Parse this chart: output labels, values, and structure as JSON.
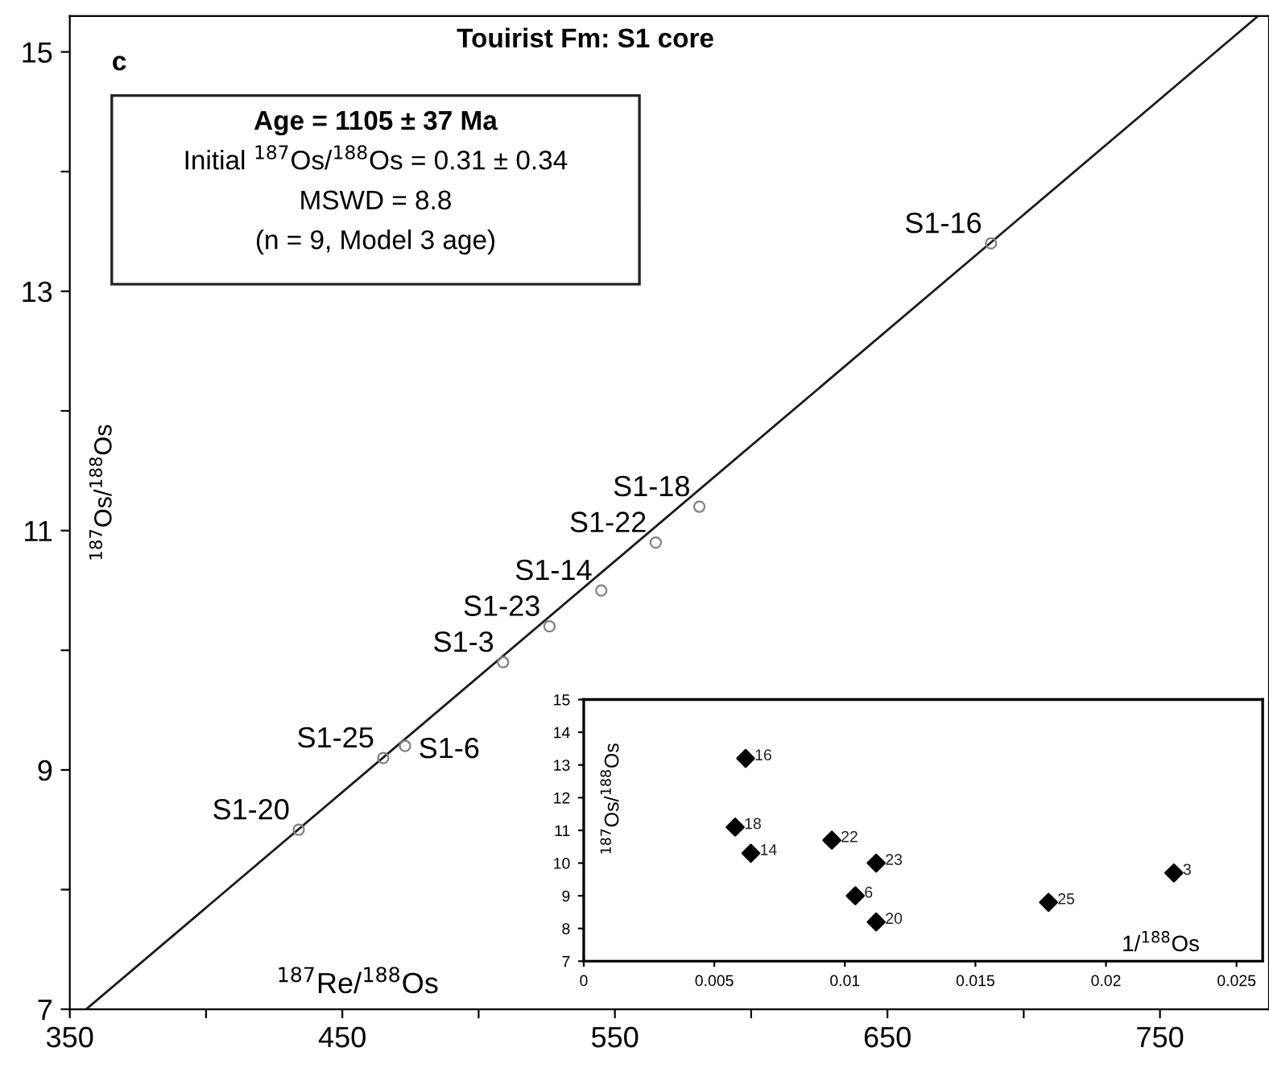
{
  "chart_data": [
    {
      "type": "scatter",
      "title": "Touirist Fm: S1 core",
      "xlabel": "$^{187}$Re/$^{188}$Os",
      "ylabel": "$^{187}$Os/$^{188}$Os",
      "annotations": [
        "c",
        "Age = 1105 ± 37 Ma",
        "Initial $^{187}$Os/$^{188}$Os = 0.31 ± 0.34",
        "MSWD = 8.8",
        "(n = 9, Model 3 age)",
        {
          "text": "S1-20",
          "x": 434,
          "y": 8.5
        },
        {
          "text": "S1-25",
          "x": 465,
          "y": 9.1
        },
        {
          "text": "S1-6",
          "x": 473,
          "y": 9.2
        },
        {
          "text": "S1-3",
          "x": 509,
          "y": 9.9
        },
        {
          "text": "S1-23",
          "x": 526,
          "y": 10.2
        },
        {
          "text": "S1-14",
          "x": 545,
          "y": 10.5
        },
        {
          "text": "S1-22",
          "x": 565,
          "y": 10.9
        },
        {
          "text": "S1-18",
          "x": 581,
          "y": 11.2
        },
        {
          "text": "S1-16",
          "x": 688,
          "y": 13.4
        }
      ],
      "series": [
        {
          "color": "#7f7f7f",
          "marker": "circle",
          "x": [
            434,
            465,
            473,
            509,
            526,
            545,
            565,
            581,
            688
          ],
          "values": [
            8.5,
            9.1,
            9.2,
            9.9,
            10.2,
            10.5,
            10.9,
            11.2,
            13.4
          ]
        },
        {
          "type": "line",
          "color": "#1a1a1a",
          "marker": "none",
          "line_style": "solid",
          "x": [
            356,
            786
          ],
          "values": [
            7.0,
            15.3
          ]
        }
      ],
      "xlim": [
        350,
        790
      ],
      "ylim": [
        7,
        15.3
      ],
      "xticks": [
        350,
        {
          "value": 400,
          "label": null
        },
        450,
        {
          "value": 500,
          "label": null
        },
        550,
        {
          "value": 600,
          "label": null
        },
        650,
        {
          "value": 700,
          "label": null
        },
        750
      ],
      "yticks": [
        7,
        {
          "value": 8,
          "label": null
        },
        9,
        {
          "value": 10,
          "label": null
        },
        11,
        {
          "value": 12,
          "label": null
        },
        13,
        {
          "value": 14,
          "label": null
        },
        15
      ],
      "grid": false,
      "legend": false
    },
    {
      "type": "scatter",
      "xlabel": "1/$^{188}$Os",
      "ylabel": "$^{187}$Os/$^{188}$Os",
      "annotations": [
        {
          "text": "16",
          "x": 0.0062,
          "y": 13.2
        },
        {
          "text": "18",
          "x": 0.0058,
          "y": 11.1
        },
        {
          "text": "14",
          "x": 0.0064,
          "y": 10.3
        },
        {
          "text": "22",
          "x": 0.0095,
          "y": 10.7
        },
        {
          "text": "23",
          "x": 0.0112,
          "y": 10.0
        },
        {
          "text": "6",
          "x": 0.0104,
          "y": 9.0
        },
        {
          "text": "20",
          "x": 0.0112,
          "y": 8.2
        },
        {
          "text": "25",
          "x": 0.0178,
          "y": 8.8
        },
        {
          "text": "3",
          "x": 0.0226,
          "y": 9.7
        }
      ],
      "series": [
        {
          "color": "#000000",
          "marker": "diamond",
          "x": [
            0.0062,
            0.0058,
            0.0064,
            0.0095,
            0.0112,
            0.0104,
            0.0112,
            0.0178,
            0.0226
          ],
          "values": [
            13.2,
            11.1,
            10.3,
            10.7,
            10.0,
            9.0,
            8.2,
            8.8,
            9.7
          ]
        }
      ],
      "xlim": [
        0,
        0.026
      ],
      "ylim": [
        7,
        15
      ],
      "xticks": [
        0,
        0.005,
        0.01,
        0.015,
        0.02,
        0.025
      ],
      "yticks": [
        7,
        8,
        9,
        10,
        11,
        12,
        13,
        14,
        15
      ],
      "grid": false,
      "legend": false
    }
  ]
}
